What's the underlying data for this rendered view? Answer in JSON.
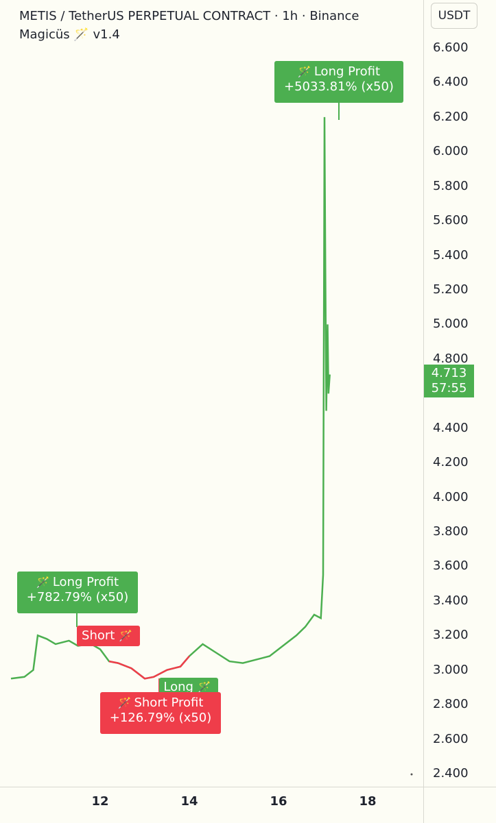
{
  "legend": {
    "title": "METIS / TetherUS PERPETUAL CONTRACT · 1h · Binance",
    "indicator": "Magicüs 🪄 v1.4"
  },
  "price_axis": {
    "currency": "USDT",
    "ticks": [
      "6.600",
      "6.400",
      "6.200",
      "6.000",
      "5.800",
      "5.600",
      "5.400",
      "5.200",
      "5.000",
      "4.800",
      "4.400",
      "4.200",
      "4.000",
      "3.800",
      "3.600",
      "3.400",
      "3.200",
      "3.000",
      "2.800",
      "2.600",
      "2.400"
    ]
  },
  "time_axis": {
    "ticks": [
      "12",
      "14",
      "16",
      "18"
    ]
  },
  "last_price": {
    "value": "4.713",
    "countdown": "57:55"
  },
  "signals": {
    "long_profit_top": {
      "icon": "🪄",
      "title": "Long Profit",
      "value": "+5033.81% (x50)"
    },
    "long_profit_left": {
      "icon": "🪄",
      "title": "Long Profit",
      "value": "+782.79% (x50)"
    },
    "short": {
      "title": "Short",
      "icon": "🪄"
    },
    "long": {
      "title": "Long",
      "icon": "🪄"
    },
    "short_profit": {
      "icon": "🪄",
      "title": "Short Profit",
      "value": "+126.79% (x50)"
    }
  },
  "colors": {
    "up": "#4caf50",
    "down": "#ef3d4a",
    "background": "#fdfdf5"
  },
  "chart_data": {
    "type": "line",
    "title": "METIS / TetherUS PERPETUAL CONTRACT · 1h · Binance",
    "ylim": [
      2.4,
      6.6
    ],
    "x_ticks": [
      "12",
      "14",
      "16",
      "18"
    ],
    "series": [
      {
        "values": [
          [
            10.0,
            2.95
          ],
          [
            10.3,
            2.96
          ],
          [
            10.5,
            3.0
          ],
          [
            10.6,
            3.2
          ],
          [
            10.8,
            3.18
          ],
          [
            11.0,
            3.15
          ],
          [
            11.3,
            3.17
          ],
          [
            11.5,
            3.14
          ],
          [
            11.8,
            3.15
          ],
          [
            12.0,
            3.12
          ],
          [
            12.2,
            3.05
          ],
          [
            12.4,
            3.04
          ],
          [
            12.7,
            3.01
          ],
          [
            13.0,
            2.95
          ],
          [
            13.2,
            2.96
          ],
          [
            13.5,
            3.0
          ],
          [
            13.8,
            3.02
          ],
          [
            14.0,
            3.08
          ],
          [
            14.3,
            3.15
          ],
          [
            14.6,
            3.1
          ],
          [
            14.9,
            3.05
          ],
          [
            15.2,
            3.04
          ],
          [
            15.5,
            3.06
          ],
          [
            15.8,
            3.08
          ],
          [
            16.1,
            3.14
          ],
          [
            16.4,
            3.2
          ],
          [
            16.6,
            3.25
          ],
          [
            16.8,
            3.32
          ],
          [
            16.95,
            3.3
          ],
          [
            17.0,
            3.55
          ],
          [
            17.03,
            6.2
          ],
          [
            17.05,
            5.3
          ],
          [
            17.07,
            4.5
          ],
          [
            17.1,
            5.0
          ],
          [
            17.12,
            4.6
          ],
          [
            17.15,
            4.71
          ]
        ],
        "color": "#4caf50"
      }
    ]
  }
}
